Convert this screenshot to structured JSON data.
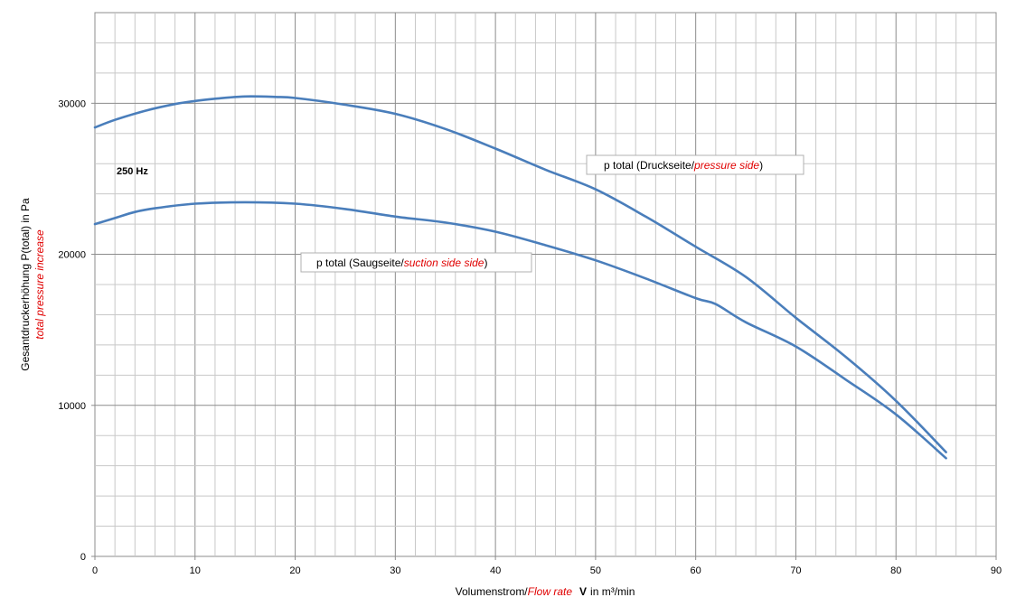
{
  "chart_data": {
    "type": "line",
    "xlabel": {
      "part1": "Volumenstrom/",
      "part2_red": "Flow rate",
      "part3": "V",
      "part4": "in m³/min"
    },
    "ylabel": {
      "line1": "Gesantdruckerhöhung P(total) in Pa",
      "line2_red": "total pressure increase"
    },
    "xlim": [
      0,
      90
    ],
    "ylim": [
      0,
      36000
    ],
    "x_ticks": [
      0,
      10,
      20,
      30,
      40,
      50,
      60,
      70,
      80,
      90
    ],
    "y_ticks": [
      0,
      10000,
      20000,
      30000
    ],
    "y_tick_labels": [
      "0",
      "10000",
      "20000",
      "30000"
    ],
    "grid": true,
    "frequency_label": "250 Hz",
    "line_color": "#4a7ebb",
    "series": [
      {
        "name_black": "p total (Druckseite/",
        "name_red": "pressure side",
        "name_end": ")",
        "x": [
          0,
          2,
          5,
          8,
          10,
          12,
          15,
          18,
          20,
          25,
          30,
          35,
          40,
          45,
          50,
          55,
          60,
          65,
          70,
          75,
          80,
          85
        ],
        "y": [
          28400,
          28900,
          29500,
          29950,
          30150,
          30300,
          30450,
          30420,
          30350,
          29900,
          29300,
          28300,
          27000,
          25600,
          24300,
          22500,
          20500,
          18500,
          15800,
          13200,
          10300,
          6900
        ]
      },
      {
        "name_black": "p total (Saugseite/",
        "name_red": "suction side side",
        "name_end": ")",
        "x": [
          0,
          2,
          4,
          6,
          10,
          15,
          20,
          25,
          30,
          35,
          40,
          45,
          50,
          55,
          60,
          62,
          65,
          70,
          75,
          80,
          85
        ],
        "y": [
          22000,
          22400,
          22800,
          23050,
          23350,
          23450,
          23350,
          23000,
          22500,
          22100,
          21500,
          20600,
          19600,
          18400,
          17100,
          16700,
          15500,
          13900,
          11700,
          9400,
          6500
        ]
      }
    ]
  }
}
